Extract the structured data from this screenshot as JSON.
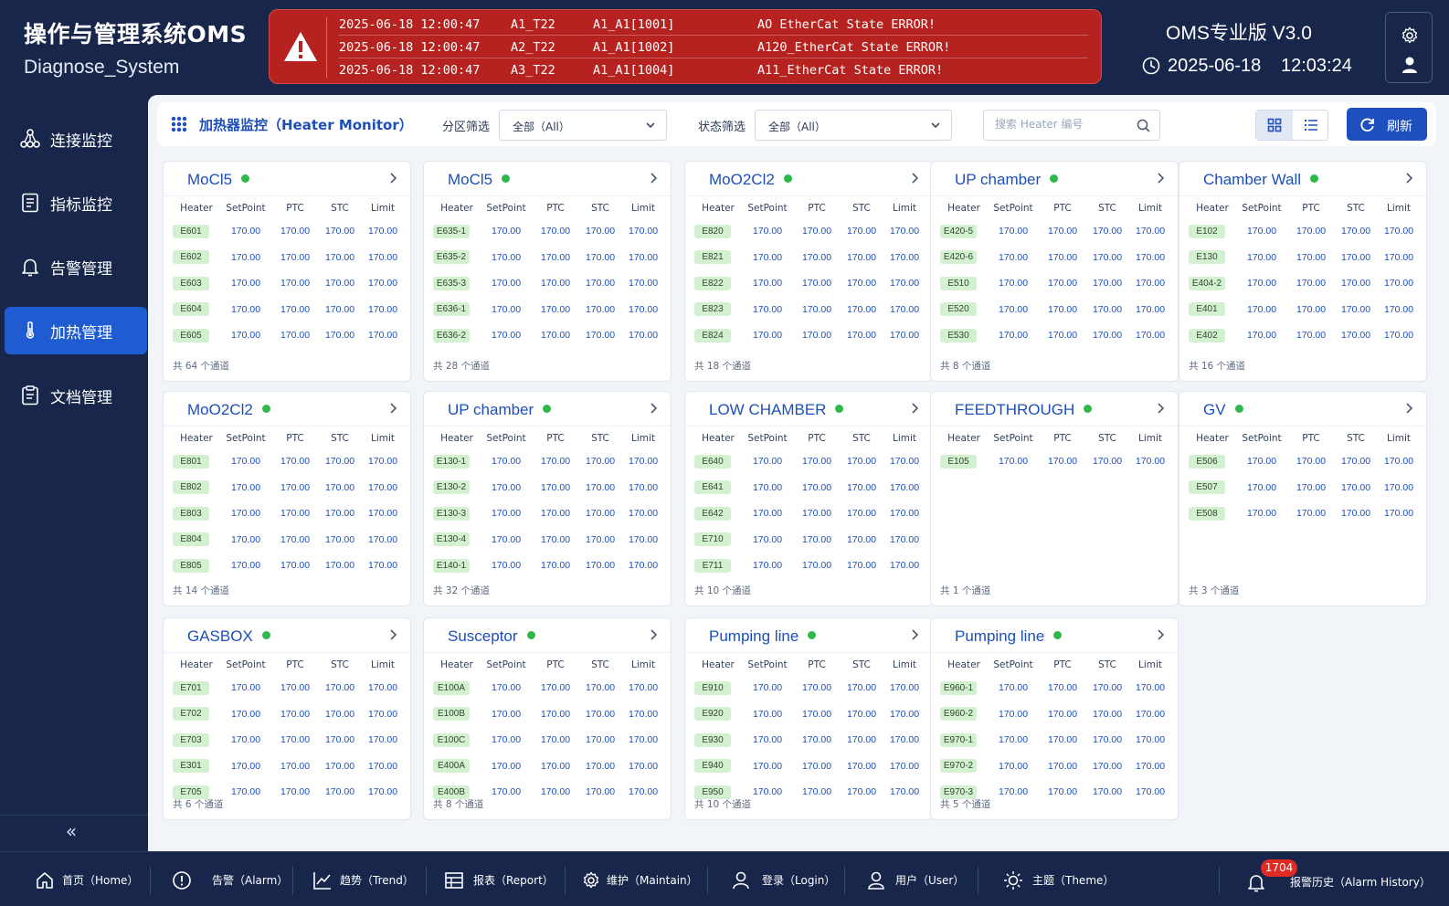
{
  "header": {
    "app_title": "操作与管理系统OMS",
    "app_subtitle": "Diagnose_System",
    "version": "OMS专业版 V3.0",
    "date": "2025-06-18",
    "time": "12:03:24"
  },
  "alarms": [
    {
      "time": "2025-06-18 12:00:47",
      "code": "A1_T22",
      "channel": "A1_A1[1001]",
      "message": "AO EtherCat State ERROR!"
    },
    {
      "time": "2025-06-18 12:00:47",
      "code": "A2_T22",
      "channel": "A1_A1[1002]",
      "message": "A120_EtherCat State ERROR!"
    },
    {
      "time": "2025-06-18 12:00:47",
      "code": "A3_T22",
      "channel": "A1_A1[1004]",
      "message": "A11_EtherCat State ERROR!"
    }
  ],
  "sidebar": {
    "items": [
      {
        "label": "连接监控",
        "icon": "network-icon"
      },
      {
        "label": "指标监控",
        "icon": "document-icon"
      },
      {
        "label": "告警管理",
        "icon": "bell-icon"
      },
      {
        "label": "加热管理",
        "icon": "thermometer-icon",
        "active": true
      },
      {
        "label": "文档管理",
        "icon": "clipboard-icon"
      }
    ],
    "collapse_label": "«"
  },
  "toolbar": {
    "title": "加热器监控（Heater Monitor）",
    "zone_filter_label": "分区筛选",
    "zone_filter_value": "全部（All）",
    "status_filter_label": "状态筛选",
    "status_filter_value": "全部（All）",
    "search_placeholder": "搜索 Heater 编号",
    "refresh_label": "刷新"
  },
  "table_headers": [
    "Heater",
    "SetPoint",
    "PTC",
    "STC",
    "Limit"
  ],
  "status_color": "#2fb84c",
  "accent_color": "#1f4fbf",
  "cards": [
    {
      "title": "MoCl5",
      "heaters": [
        "E601",
        "E602",
        "E603",
        "E604",
        "E605"
      ],
      "footer": "共 64 个通道"
    },
    {
      "title": "MoCl5",
      "heaters": [
        "E635-1",
        "E635-2",
        "E635-3",
        "E636-1",
        "E636-2"
      ],
      "footer": "共 28 个通道"
    },
    {
      "title": "MoO2Cl2",
      "heaters": [
        "E820",
        "E821",
        "E822",
        "E823",
        "E824"
      ],
      "footer": "共 18 个通道"
    },
    {
      "title": "UP chamber",
      "heaters": [
        "E420-5",
        "E420-6",
        "E510",
        "E520",
        "E530"
      ],
      "footer": "共 8 个通道"
    },
    {
      "title": "Chamber Wall",
      "heaters": [
        "E102",
        "E130",
        "E404-2",
        "E401",
        "E402"
      ],
      "footer": "共 16 个通道"
    },
    {
      "title": "MoO2Cl2",
      "heaters": [
        "E801",
        "E802",
        "E803",
        "E804",
        "E805"
      ],
      "footer": "共 14 个通道"
    },
    {
      "title": "UP chamber",
      "heaters": [
        "E130-1",
        "E130-2",
        "E130-3",
        "E130-4",
        "E140-1"
      ],
      "footer": "共 32 个通道"
    },
    {
      "title": "LOW CHAMBER",
      "heaters": [
        "E640",
        "E641",
        "E642",
        "E710",
        "E711"
      ],
      "footer": "共 10 个通道"
    },
    {
      "title": "FEEDTHROUGH",
      "heaters": [
        "E105"
      ],
      "footer": "共 1 个通道"
    },
    {
      "title": "GV",
      "heaters": [
        "E506",
        "E507",
        "E508"
      ],
      "footer": "共 3 个通道"
    },
    {
      "title": "GASBOX",
      "heaters": [
        "E701",
        "E702",
        "E703",
        "E301",
        "E705"
      ],
      "footer": "共 6 个通道"
    },
    {
      "title": "Susceptor",
      "heaters": [
        "E100A",
        "E100B",
        "E100C",
        "E400A",
        "E400B"
      ],
      "footer": "共 8 个通道"
    },
    {
      "title": "Pumping line",
      "heaters": [
        "E910",
        "E920",
        "E930",
        "E940",
        "E950"
      ],
      "footer": "共 10 个通道"
    },
    {
      "title": "Pumping line",
      "heaters": [
        "E960-1",
        "E960-2",
        "E970-1",
        "E970-2",
        "E970-3"
      ],
      "footer": "共 5 个通道"
    }
  ],
  "reading_value": "170.00",
  "bottom_bar": {
    "items": [
      {
        "label": "首页（Home）",
        "icon": "home-icon"
      },
      {
        "label": "告警（Alarm）",
        "icon": "alert-circle-icon"
      },
      {
        "label": "趋势（Trend）",
        "icon": "trend-icon"
      },
      {
        "label": "报表（Report）",
        "icon": "report-icon"
      },
      {
        "label": "维护（Maintain）",
        "icon": "gear-icon"
      },
      {
        "label": "登录（Login）",
        "icon": "login-icon"
      },
      {
        "label": "用户（User）",
        "icon": "user-icon"
      },
      {
        "label": "主题（Theme）",
        "icon": "sun-icon"
      }
    ],
    "alarm_history_label": "报警历史（Alarm History）",
    "alarm_count": "1704"
  }
}
